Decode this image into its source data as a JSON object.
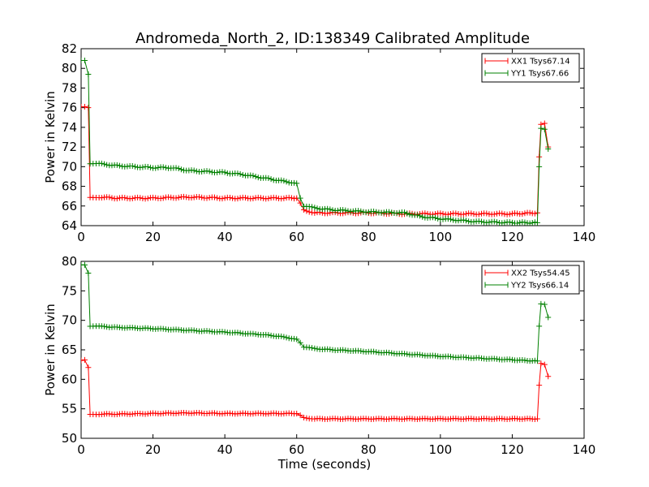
{
  "title": "Andromeda_North_2, ID:138349 Calibrated Amplitude",
  "colors": {
    "xx": "#ff0000",
    "yy": "#008000"
  },
  "chart_data": [
    {
      "type": "line",
      "marker": "plus",
      "title": "Andromeda_North_2, ID:138349 Calibrated Amplitude",
      "xlabel": "",
      "ylabel": "Power in Kelvin",
      "xlim": [
        0,
        140
      ],
      "ylim": [
        64,
        82
      ],
      "xticks": [
        "0",
        "20",
        "40",
        "60",
        "80",
        "100",
        "120",
        "140"
      ],
      "yticks": [
        "64",
        "66",
        "68",
        "70",
        "72",
        "74",
        "76",
        "78",
        "80",
        "82"
      ],
      "legend_position": "top-right",
      "grid": false,
      "series": [
        {
          "name": "XX1 Tsys67.14",
          "color": "#ff0000",
          "x": [
            0,
            1,
            2,
            2.5,
            5,
            10,
            20,
            30,
            40,
            50,
            60,
            61,
            62,
            65,
            70,
            80,
            90,
            100,
            110,
            120,
            127,
            127.5,
            128,
            129,
            130
          ],
          "y": [
            76.1,
            76.1,
            76.0,
            66.9,
            66.9,
            66.8,
            66.8,
            66.9,
            66.8,
            66.8,
            66.8,
            66.3,
            65.6,
            65.3,
            65.3,
            65.3,
            65.2,
            65.2,
            65.2,
            65.2,
            65.3,
            71.0,
            74.3,
            74.4,
            72.0
          ]
        },
        {
          "name": "YY1 Tsys67.66",
          "color": "#008000",
          "x": [
            0,
            1,
            2,
            2.5,
            5,
            10,
            20,
            25,
            30,
            40,
            45,
            50,
            55,
            60,
            61,
            62,
            65,
            70,
            80,
            90,
            95,
            100,
            110,
            120,
            127,
            127.5,
            128,
            129,
            130
          ],
          "y": [
            80.8,
            80.8,
            79.4,
            70.3,
            70.3,
            70.1,
            69.9,
            69.9,
            69.6,
            69.4,
            69.2,
            68.9,
            68.6,
            68.3,
            66.8,
            66.0,
            65.8,
            65.6,
            65.4,
            65.3,
            64.9,
            64.7,
            64.4,
            64.3,
            64.3,
            70.0,
            73.9,
            73.8,
            71.8
          ]
        }
      ]
    },
    {
      "type": "line",
      "marker": "plus",
      "title": "",
      "xlabel": "Time (seconds)",
      "ylabel": "Power in Kelvin",
      "xlim": [
        0,
        140
      ],
      "ylim": [
        50,
        80
      ],
      "xticks": [
        "0",
        "20",
        "40",
        "60",
        "80",
        "100",
        "120",
        "140"
      ],
      "yticks": [
        "50",
        "55",
        "60",
        "65",
        "70",
        "75",
        "80"
      ],
      "legend_position": "top-right",
      "grid": false,
      "series": [
        {
          "name": "XX2 Tsys54.45",
          "color": "#ff0000",
          "x": [
            0,
            1,
            2,
            2.5,
            5,
            10,
            20,
            30,
            40,
            50,
            60,
            61,
            62,
            65,
            70,
            80,
            90,
            100,
            110,
            120,
            127,
            127.5,
            128,
            129,
            130
          ],
          "y": [
            63.2,
            63.3,
            62.0,
            54.1,
            54.1,
            54.1,
            54.2,
            54.3,
            54.2,
            54.2,
            54.2,
            53.9,
            53.5,
            53.3,
            53.3,
            53.3,
            53.3,
            53.3,
            53.3,
            53.3,
            53.3,
            59.0,
            62.7,
            62.5,
            60.5
          ]
        },
        {
          "name": "YY2 Tsys66.14",
          "color": "#008000",
          "x": [
            0,
            1,
            2,
            2.5,
            5,
            10,
            20,
            30,
            40,
            45,
            50,
            55,
            60,
            61,
            62,
            65,
            70,
            80,
            90,
            100,
            110,
            120,
            127,
            127.5,
            128,
            129,
            130
          ],
          "y": [
            79.4,
            79.4,
            78.0,
            69.0,
            69.0,
            68.8,
            68.6,
            68.3,
            68.0,
            67.8,
            67.6,
            67.3,
            66.8,
            66.2,
            65.5,
            65.2,
            65.0,
            64.7,
            64.3,
            63.9,
            63.6,
            63.3,
            63.1,
            69.0,
            72.8,
            72.7,
            70.5
          ]
        }
      ]
    }
  ]
}
